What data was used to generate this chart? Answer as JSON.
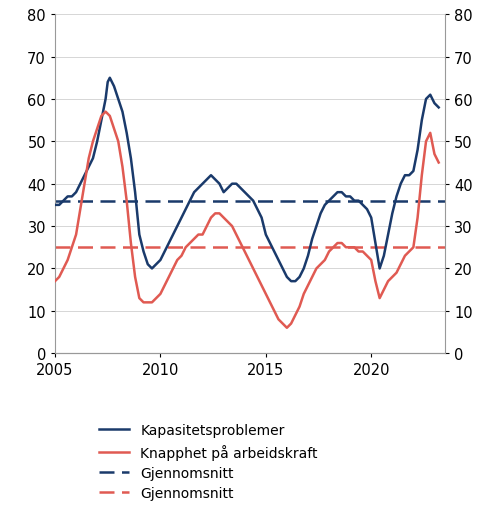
{
  "blue_avg": 36,
  "red_avg": 25,
  "blue_color": "#1a3a6b",
  "red_color": "#e05a52",
  "ylim": [
    0,
    80
  ],
  "yticks": [
    0,
    10,
    20,
    30,
    40,
    50,
    60,
    70,
    80
  ],
  "xlim": [
    2005,
    2023.5
  ],
  "xticks": [
    2005,
    2010,
    2015,
    2020
  ],
  "legend_labels": [
    "Kapasitetsproblemer",
    "Knapphet på arbeidskraft",
    "Gjennomsnitt",
    "Gjennomsnitt"
  ],
  "blue_data": {
    "years": [
      2005.0,
      2005.2,
      2005.4,
      2005.6,
      2005.8,
      2006.0,
      2006.2,
      2006.4,
      2006.6,
      2006.8,
      2007.0,
      2007.2,
      2007.4,
      2007.5,
      2007.6,
      2007.8,
      2008.0,
      2008.2,
      2008.4,
      2008.6,
      2008.8,
      2009.0,
      2009.2,
      2009.4,
      2009.6,
      2009.8,
      2010.0,
      2010.2,
      2010.4,
      2010.6,
      2010.8,
      2011.0,
      2011.2,
      2011.4,
      2011.6,
      2011.8,
      2012.0,
      2012.2,
      2012.4,
      2012.6,
      2012.8,
      2013.0,
      2013.2,
      2013.4,
      2013.6,
      2013.8,
      2014.0,
      2014.2,
      2014.4,
      2014.6,
      2014.8,
      2015.0,
      2015.2,
      2015.4,
      2015.6,
      2015.8,
      2016.0,
      2016.2,
      2016.4,
      2016.6,
      2016.8,
      2017.0,
      2017.2,
      2017.4,
      2017.6,
      2017.8,
      2018.0,
      2018.2,
      2018.4,
      2018.6,
      2018.8,
      2019.0,
      2019.2,
      2019.4,
      2019.6,
      2019.8,
      2020.0,
      2020.2,
      2020.4,
      2020.6,
      2020.8,
      2021.0,
      2021.2,
      2021.4,
      2021.6,
      2021.8,
      2022.0,
      2022.2,
      2022.4,
      2022.6,
      2022.8,
      2023.0,
      2023.2
    ],
    "values": [
      35,
      35,
      36,
      37,
      37,
      38,
      40,
      42,
      44,
      46,
      50,
      55,
      60,
      64,
      65,
      63,
      60,
      57,
      52,
      46,
      38,
      28,
      24,
      21,
      20,
      21,
      22,
      24,
      26,
      28,
      30,
      32,
      34,
      36,
      38,
      39,
      40,
      41,
      42,
      41,
      40,
      38,
      39,
      40,
      40,
      39,
      38,
      37,
      36,
      34,
      32,
      28,
      26,
      24,
      22,
      20,
      18,
      17,
      17,
      18,
      20,
      23,
      27,
      30,
      33,
      35,
      36,
      37,
      38,
      38,
      37,
      37,
      36,
      36,
      35,
      34,
      32,
      26,
      20,
      23,
      28,
      33,
      37,
      40,
      42,
      42,
      43,
      48,
      55,
      60,
      61,
      59,
      58
    ]
  },
  "red_data": {
    "years": [
      2005.0,
      2005.2,
      2005.4,
      2005.6,
      2005.8,
      2006.0,
      2006.2,
      2006.4,
      2006.6,
      2006.8,
      2007.0,
      2007.2,
      2007.4,
      2007.6,
      2007.8,
      2008.0,
      2008.2,
      2008.4,
      2008.6,
      2008.8,
      2009.0,
      2009.2,
      2009.4,
      2009.6,
      2009.8,
      2010.0,
      2010.2,
      2010.4,
      2010.6,
      2010.8,
      2011.0,
      2011.2,
      2011.4,
      2011.6,
      2011.8,
      2012.0,
      2012.2,
      2012.4,
      2012.6,
      2012.8,
      2013.0,
      2013.2,
      2013.4,
      2013.6,
      2013.8,
      2014.0,
      2014.2,
      2014.4,
      2014.6,
      2014.8,
      2015.0,
      2015.2,
      2015.4,
      2015.6,
      2015.8,
      2016.0,
      2016.2,
      2016.4,
      2016.6,
      2016.8,
      2017.0,
      2017.2,
      2017.4,
      2017.6,
      2017.8,
      2018.0,
      2018.2,
      2018.4,
      2018.6,
      2018.8,
      2019.0,
      2019.2,
      2019.4,
      2019.6,
      2019.8,
      2020.0,
      2020.2,
      2020.4,
      2020.6,
      2020.8,
      2021.0,
      2021.2,
      2021.4,
      2021.6,
      2021.8,
      2022.0,
      2022.2,
      2022.4,
      2022.6,
      2022.8,
      2023.0,
      2023.2
    ],
    "values": [
      17,
      18,
      20,
      22,
      25,
      28,
      34,
      40,
      46,
      50,
      53,
      56,
      57,
      56,
      53,
      50,
      44,
      36,
      26,
      18,
      13,
      12,
      12,
      12,
      13,
      14,
      16,
      18,
      20,
      22,
      23,
      25,
      26,
      27,
      28,
      28,
      30,
      32,
      33,
      33,
      32,
      31,
      30,
      28,
      26,
      24,
      22,
      20,
      18,
      16,
      14,
      12,
      10,
      8,
      7,
      6,
      7,
      9,
      11,
      14,
      16,
      18,
      20,
      21,
      22,
      24,
      25,
      26,
      26,
      25,
      25,
      25,
      24,
      24,
      23,
      22,
      17,
      13,
      15,
      17,
      18,
      19,
      21,
      23,
      24,
      25,
      32,
      42,
      50,
      52,
      47,
      45
    ]
  }
}
